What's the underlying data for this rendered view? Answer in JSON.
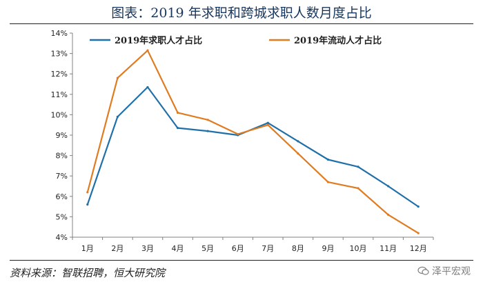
{
  "header": {
    "title": "图表：2019 年求职和跨城求职人数月度占比"
  },
  "footer": {
    "source": "资料来源：智联招聘，恒大研究院",
    "watermark": "泽平宏观"
  },
  "chart_data": {
    "type": "line",
    "categories": [
      "1月",
      "2月",
      "3月",
      "4月",
      "5月",
      "6月",
      "7月",
      "8月",
      "9月",
      "10月",
      "11月",
      "12月"
    ],
    "series": [
      {
        "name": "2019年求职人才占比",
        "color": "#1f6fa8",
        "values": [
          5.6,
          9.9,
          11.35,
          9.35,
          9.2,
          9.0,
          9.6,
          8.7,
          7.8,
          7.45,
          6.5,
          5.5
        ]
      },
      {
        "name": "2019年流动人才占比",
        "color": "#e07b20",
        "values": [
          6.2,
          11.8,
          13.15,
          10.1,
          9.75,
          9.05,
          9.5,
          8.1,
          6.7,
          6.4,
          5.1,
          4.2
        ]
      }
    ],
    "ylim": [
      4,
      14
    ],
    "yticks": [
      "4%",
      "5%",
      "6%",
      "7%",
      "8%",
      "9%",
      "10%",
      "11%",
      "12%",
      "13%",
      "14%"
    ],
    "grid": false,
    "legend_position": "top-left",
    "xlabel": "",
    "ylabel": ""
  }
}
